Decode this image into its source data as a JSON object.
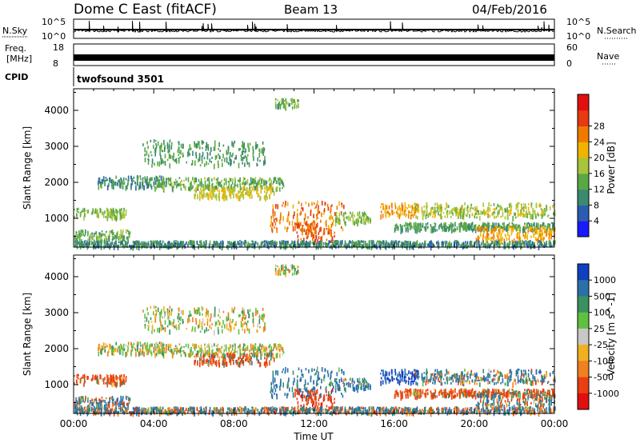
{
  "header": {
    "title": "Dome C East (fitACF)",
    "beam": "Beam 13",
    "date": "04/Feb/2016"
  },
  "top_panels": {
    "nsky_label": "N.Sky",
    "nsky_ticks": [
      "10^5",
      "10^0"
    ],
    "nsearch_label": "N.Search",
    "freq_label_1": "Freq.",
    "freq_label_2": "[MHz]",
    "freq_ticks": [
      "18",
      "8"
    ],
    "nave_label": "Nave",
    "nave_ticks": [
      "60",
      "0"
    ],
    "cpid_label": "CPID",
    "cpid_value": "twofsound 3501"
  },
  "chart_data": [
    {
      "type": "heatmap",
      "panel": "power",
      "ylabel": "Slant Range [km]",
      "yticks": [
        1000,
        2000,
        3000,
        4000
      ],
      "ylim": [
        200,
        4600
      ],
      "xlim": [
        0,
        24
      ],
      "colorbar_label": "Power [dB]",
      "colorbar_ticks": [
        "4",
        "8",
        "12",
        "16",
        "20",
        "24",
        "28"
      ],
      "colorbar_colors": [
        "#1a1aff",
        "#2a5db0",
        "#3b8a6e",
        "#5aa845",
        "#a8c43a",
        "#f0b400",
        "#f07a00",
        "#e63a10",
        "#e01010"
      ],
      "bands": [
        {
          "t0": 0.0,
          "t1": 2.6,
          "r0": 1050,
          "r1": 1300,
          "value": 14
        },
        {
          "t0": 0.0,
          "t1": 2.8,
          "r0": 400,
          "r1": 700,
          "value": 12
        },
        {
          "t0": 1.2,
          "t1": 4.5,
          "r0": 1900,
          "r1": 2200,
          "value": 8
        },
        {
          "t0": 3.4,
          "t1": 9.6,
          "r0": 2500,
          "r1": 3200,
          "value": 10
        },
        {
          "t0": 4.0,
          "t1": 10.5,
          "r0": 1850,
          "r1": 2150,
          "value": 12
        },
        {
          "t0": 6.0,
          "t1": 10.0,
          "r0": 1600,
          "r1": 1900,
          "value": 18
        },
        {
          "t0": 9.8,
          "t1": 13.5,
          "r0": 700,
          "r1": 1500,
          "value": 24
        },
        {
          "t0": 11.0,
          "t1": 13.0,
          "r0": 400,
          "r1": 900,
          "value": 26
        },
        {
          "t0": 13.0,
          "t1": 14.8,
          "r0": 900,
          "r1": 1200,
          "value": 14
        },
        {
          "t0": 15.2,
          "t1": 17.2,
          "r0": 1100,
          "r1": 1450,
          "value": 22
        },
        {
          "t0": 17.0,
          "t1": 24.0,
          "r0": 1050,
          "r1": 1450,
          "value": 16
        },
        {
          "t0": 16.0,
          "t1": 24.0,
          "r0": 700,
          "r1": 900,
          "value": 10
        },
        {
          "t0": 20.0,
          "t1": 24.0,
          "r0": 400,
          "r1": 800,
          "value": 22
        },
        {
          "t0": 0.0,
          "t1": 24.0,
          "r0": 250,
          "r1": 400,
          "value": 8
        },
        {
          "t0": 10.0,
          "t1": 11.2,
          "r0": 4100,
          "r1": 4350,
          "value": 12
        }
      ]
    },
    {
      "type": "heatmap",
      "panel": "velocity",
      "ylabel": "Slant Range [km]",
      "yticks": [
        1000,
        2000,
        3000,
        4000
      ],
      "ylim": [
        200,
        4600
      ],
      "xlim": [
        0,
        24
      ],
      "xticks": [
        "00:00",
        "04:00",
        "08:00",
        "12:00",
        "16:00",
        "20:00",
        "00:00"
      ],
      "xlabel": "Time UT",
      "colorbar_label": "Velocity [m s^-1]",
      "colorbar_ticks": [
        "1000",
        "500",
        "100",
        "25",
        "-25",
        "-100",
        "-500",
        "-1000"
      ],
      "colorbar_colors": [
        "#1040c0",
        "#2a70a8",
        "#3a9060",
        "#60c040",
        "#c8c8c8",
        "#f0b020",
        "#f08020",
        "#e84010",
        "#e01010"
      ],
      "bands": [
        {
          "t0": 0.0,
          "t1": 2.6,
          "r0": 1050,
          "r1": 1300,
          "value": -150
        },
        {
          "t0": 0.0,
          "t1": 2.8,
          "r0": 400,
          "r1": 700,
          "value": 60
        },
        {
          "t0": 1.2,
          "t1": 4.5,
          "r0": 1900,
          "r1": 2200,
          "value": 0
        },
        {
          "t0": 3.4,
          "t1": 9.6,
          "r0": 2500,
          "r1": 3200,
          "value": 0
        },
        {
          "t0": 4.0,
          "t1": 10.5,
          "r0": 1850,
          "r1": 2150,
          "value": 0
        },
        {
          "t0": 6.0,
          "t1": 10.0,
          "r0": 1600,
          "r1": 1900,
          "value": -100
        },
        {
          "t0": 9.8,
          "t1": 13.5,
          "r0": 700,
          "r1": 1500,
          "value": 200
        },
        {
          "t0": 11.0,
          "t1": 13.0,
          "r0": 400,
          "r1": 900,
          "value": -300
        },
        {
          "t0": 13.0,
          "t1": 14.8,
          "r0": 900,
          "r1": 1200,
          "value": 150
        },
        {
          "t0": 15.2,
          "t1": 17.2,
          "r0": 1100,
          "r1": 1450,
          "value": 500
        },
        {
          "t0": 17.0,
          "t1": 24.0,
          "r0": 1050,
          "r1": 1450,
          "value": 100
        },
        {
          "t0": 16.0,
          "t1": 24.0,
          "r0": 700,
          "r1": 900,
          "value": -150
        },
        {
          "t0": 20.0,
          "t1": 24.0,
          "r0": 400,
          "r1": 800,
          "value": 60
        },
        {
          "t0": 0.0,
          "t1": 24.0,
          "r0": 250,
          "r1": 400,
          "value": 60
        },
        {
          "t0": 10.0,
          "t1": 11.2,
          "r0": 4100,
          "r1": 4350,
          "value": 0
        }
      ]
    }
  ]
}
